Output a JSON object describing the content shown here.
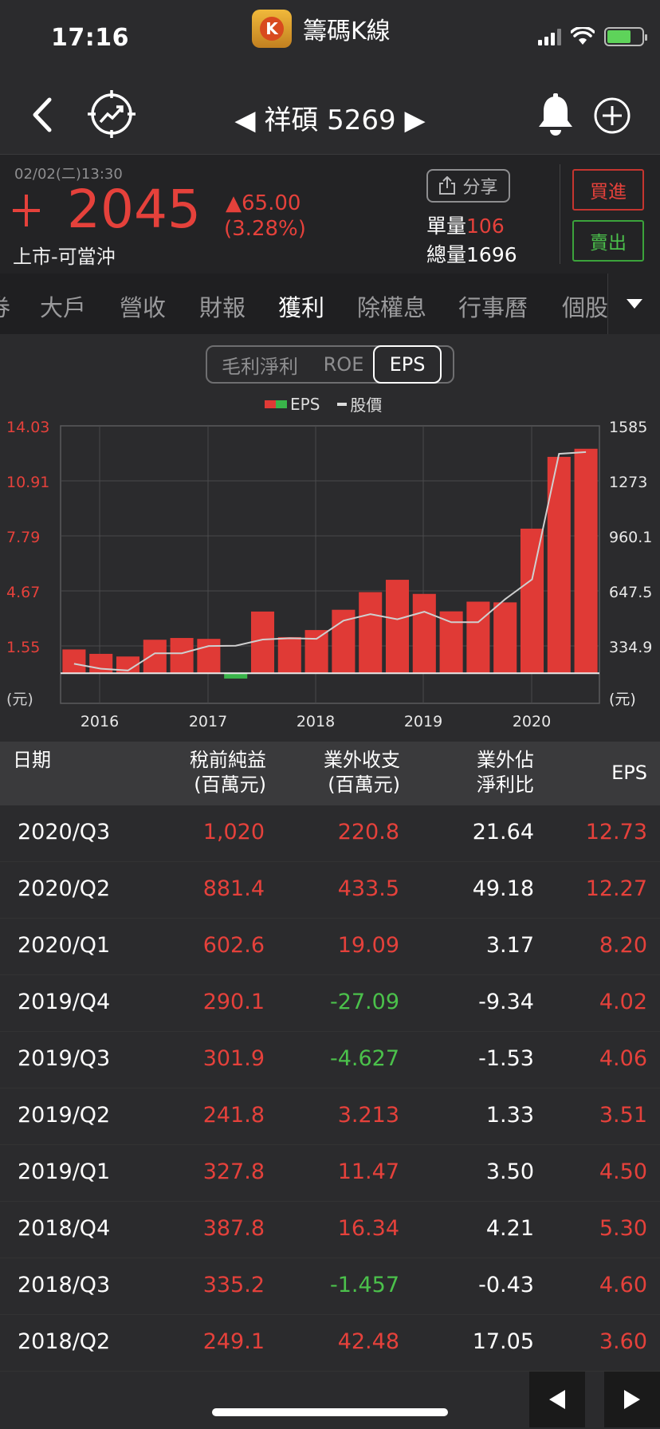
{
  "status": {
    "time": "17:16"
  },
  "app": {
    "name": "籌碼K線",
    "logo_letter": "K"
  },
  "nav": {
    "title": "◀ 祥碩 5269 ▶"
  },
  "quote": {
    "datetime": "02/02(二)13:30",
    "price": "2045",
    "change": "▲65.00",
    "change_pct": "(3.28%)",
    "market": "上市-可當沖",
    "share_label": "分享",
    "unit_vol_label": "單量",
    "unit_vol": "106",
    "total_vol_label": "總量",
    "total_vol": "1696",
    "buy_label": "買進",
    "sell_label": "賣出"
  },
  "tabs": [
    "券",
    "大戶",
    "營收",
    "財報",
    "獲利",
    "除權息",
    "行事曆",
    "個股"
  ],
  "active_tab": "獲利",
  "segments": [
    "毛利淨利",
    "ROE",
    "EPS"
  ],
  "legend": {
    "eps": "EPS",
    "price": "股價"
  },
  "chart_data": {
    "type": "bar",
    "xlabels": [
      "2016",
      "2017",
      "2018",
      "2019",
      "2020"
    ],
    "left_ticks": [
      "14.03",
      "10.91",
      "7.79",
      "4.67",
      "1.55",
      "(元)"
    ],
    "right_ticks": [
      "1585",
      "1273",
      "960.1",
      "647.5",
      "334.9",
      "(元)"
    ],
    "eps": [
      1.35,
      1.1,
      0.95,
      1.9,
      2.0,
      1.95,
      -0.3,
      3.5,
      2.05,
      2.45,
      3.6,
      4.6,
      5.3,
      4.5,
      3.51,
      4.06,
      4.02,
      8.2,
      12.27,
      12.73
    ],
    "price": [
      233,
      205,
      195,
      293,
      293,
      334,
      336,
      371,
      378,
      375,
      478,
      515,
      486,
      529,
      469,
      469,
      600,
      713,
      1426,
      1436
    ],
    "colors": {
      "up": "#e03a36",
      "down": "#39b54a",
      "price_line": "#cfcfcf"
    }
  },
  "table": {
    "headers": {
      "date": "日期",
      "pretax_1": "稅前純益",
      "pretax_2": "(百萬元)",
      "nonop_1": "業外收支",
      "nonop_2": "(百萬元)",
      "ratio_1": "業外佔",
      "ratio_2": "淨利比",
      "eps": "EPS"
    },
    "rows": [
      {
        "date": "2020/Q3",
        "pretax": "1,020",
        "nonop": "220.8",
        "ratio": "21.64",
        "eps": "12.73"
      },
      {
        "date": "2020/Q2",
        "pretax": "881.4",
        "nonop": "433.5",
        "ratio": "49.18",
        "eps": "12.27"
      },
      {
        "date": "2020/Q1",
        "pretax": "602.6",
        "nonop": "19.09",
        "ratio": "3.17",
        "eps": "8.20"
      },
      {
        "date": "2019/Q4",
        "pretax": "290.1",
        "nonop": "-27.09",
        "ratio": "-9.34",
        "eps": "4.02"
      },
      {
        "date": "2019/Q3",
        "pretax": "301.9",
        "nonop": "-4.627",
        "ratio": "-1.53",
        "eps": "4.06"
      },
      {
        "date": "2019/Q2",
        "pretax": "241.8",
        "nonop": "3.213",
        "ratio": "1.33",
        "eps": "3.51"
      },
      {
        "date": "2019/Q1",
        "pretax": "327.8",
        "nonop": "11.47",
        "ratio": "3.50",
        "eps": "4.50"
      },
      {
        "date": "2018/Q4",
        "pretax": "387.8",
        "nonop": "16.34",
        "ratio": "4.21",
        "eps": "5.30"
      },
      {
        "date": "2018/Q3",
        "pretax": "335.2",
        "nonop": "-1.457",
        "ratio": "-0.43",
        "eps": "4.60"
      },
      {
        "date": "2018/Q2",
        "pretax": "249.1",
        "nonop": "42.48",
        "ratio": "17.05",
        "eps": "3.60"
      }
    ]
  },
  "pager": {
    "prev": "◀",
    "next": "▶"
  }
}
